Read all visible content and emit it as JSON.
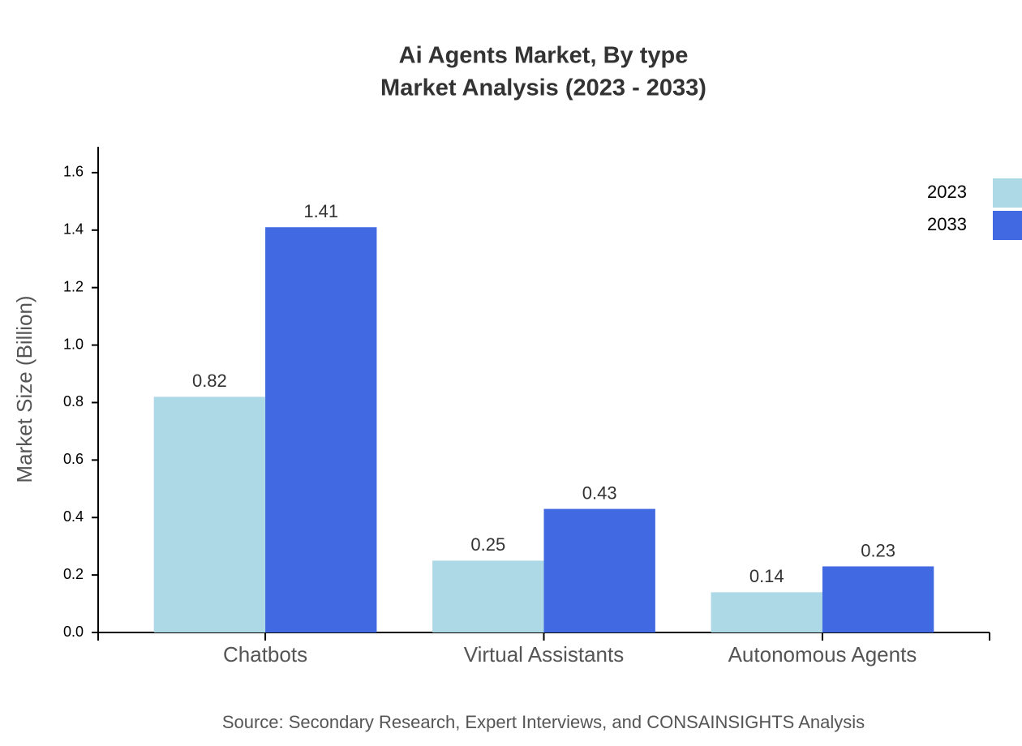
{
  "chart_data": {
    "type": "bar",
    "title": "Ai Agents Market, By type",
    "subtitle": "Market Analysis (2023 - 2033)",
    "y_label": "Market Size (Billion)",
    "source": "Source: Secondary Research, Expert Interviews, and CONSAINSIGHTS Analysis",
    "categories": [
      "Chatbots",
      "Virtual Assistants",
      "Autonomous Agents"
    ],
    "series": [
      {
        "name": "2023",
        "color": "#add8e6",
        "values": [
          0.82,
          0.25,
          0.14
        ]
      },
      {
        "name": "2033",
        "color": "#4169e1",
        "values": [
          1.41,
          0.43,
          0.23
        ]
      }
    ],
    "ylim": [
      0,
      1.69
    ],
    "yticks": [
      {
        "value": 0,
        "label": "0.0"
      },
      0.2,
      0.4,
      0.6,
      0.8,
      {
        "value": 1,
        "label": "1.0"
      },
      1.2,
      1.4,
      1.6
    ],
    "legend": "top-right"
  }
}
